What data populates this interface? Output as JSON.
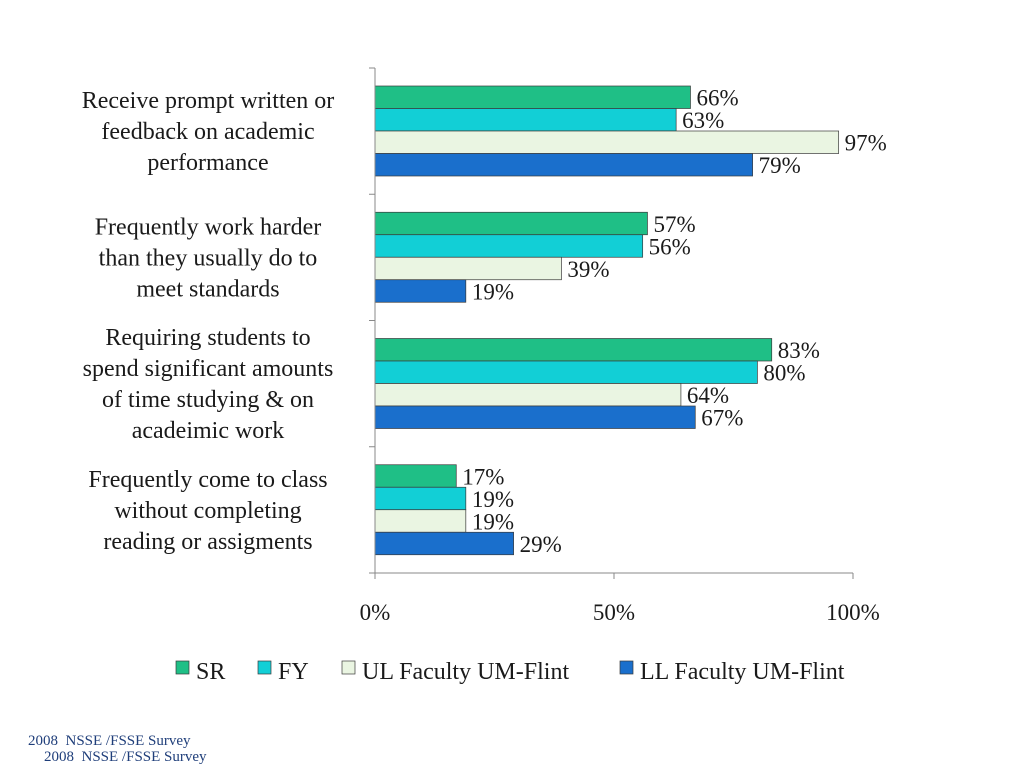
{
  "chart_data": {
    "type": "bar",
    "orientation": "horizontal",
    "categories": [
      [
        "Receive prompt written or",
        "feedback on academic",
        "performance"
      ],
      [
        "Frequently work harder",
        "than they usually do to",
        "meet standards"
      ],
      [
        "Requiring students to",
        "spend significant amounts",
        "of time studying & on",
        "acadeimic work"
      ],
      [
        "Frequently come to class",
        "without completing",
        "reading or assigments"
      ]
    ],
    "series": [
      {
        "name": "SR",
        "values": [
          66,
          57,
          83,
          17
        ],
        "color": "#1fbf86"
      },
      {
        "name": "FY",
        "values": [
          63,
          56,
          80,
          19
        ],
        "color": "#12cfd6"
      },
      {
        "name": "UL Faculty UM-Flint",
        "values": [
          97,
          39,
          64,
          19
        ],
        "color": "#eaf5e2"
      },
      {
        "name": "LL Faculty UM-Flint",
        "values": [
          79,
          19,
          67,
          29
        ],
        "color": "#1a6fcc"
      }
    ],
    "value_suffix": "%",
    "xlim": [
      0,
      100
    ],
    "xticks": [
      "0%",
      "50%",
      "100%"
    ],
    "legend_position": "bottom",
    "grid": false
  },
  "footer": {
    "line1": "2008  NSSE /FSSE Survey",
    "line2": "2008  NSSE /FSSE Survey"
  }
}
